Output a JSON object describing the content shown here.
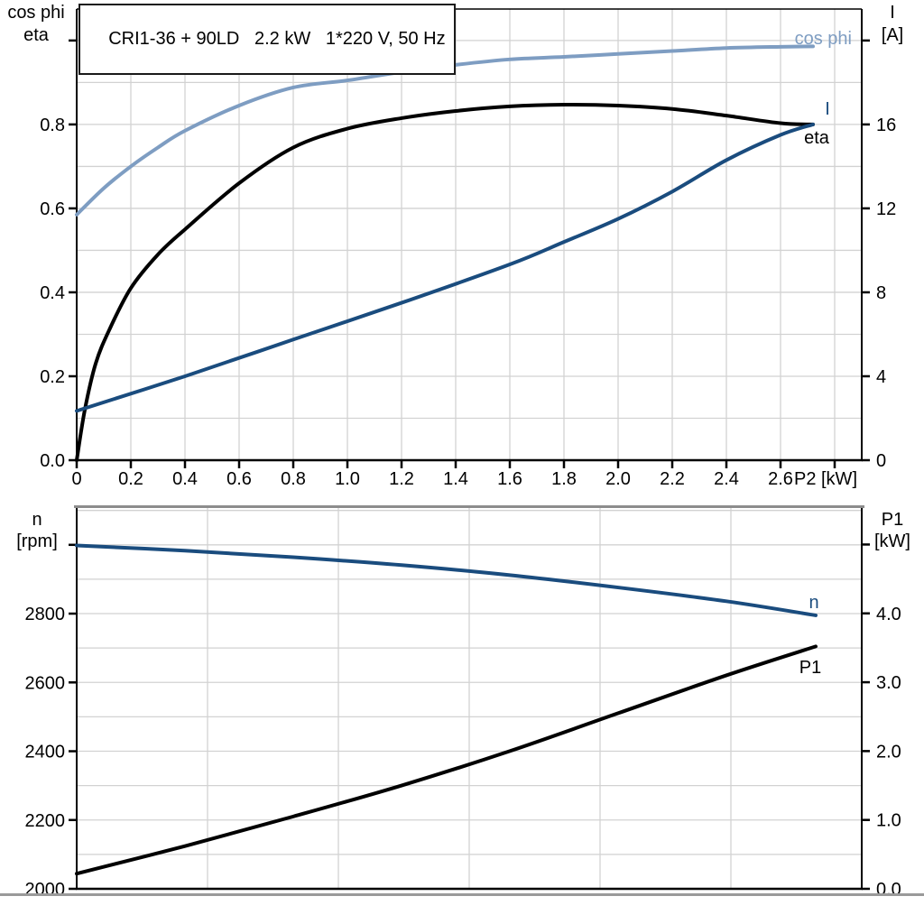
{
  "title_box": {
    "text": "CRI1-36 + 90LD   2.2 kW   1*220 V, 50 Hz"
  },
  "colors": {
    "light_blue": "#7E9DC2",
    "dark_blue": "#1A4C7E",
    "black": "#000000",
    "grid": "#D2D2D2",
    "frame_gray": "#8C8C8C"
  },
  "top_chart": {
    "left_axis_title": [
      "cos phi",
      "eta"
    ],
    "right_axis_title": [
      "I",
      "[A]"
    ],
    "x_axis_label": "P2 [kW]",
    "left_tick_labels": [
      "0.0",
      "0.2",
      "0.4",
      "0.6",
      "0.8"
    ],
    "right_tick_labels": [
      "0",
      "4",
      "8",
      "12",
      "16"
    ],
    "x_tick_labels": [
      "0",
      "0.2",
      "0.4",
      "0.6",
      "0.8",
      "1.0",
      "1.2",
      "1.4",
      "1.6",
      "1.8",
      "2.0",
      "2.2",
      "2.4",
      "2.6"
    ],
    "curve_labels": {
      "cos_phi": "cos phi",
      "I": "I",
      "eta": "eta"
    }
  },
  "bottom_chart": {
    "left_axis_title": [
      "n",
      "[rpm]"
    ],
    "right_axis_title": [
      "P1",
      "[kW]"
    ],
    "left_tick_labels": [
      "2000",
      "2200",
      "2400",
      "2600",
      "2800"
    ],
    "right_tick_labels": [
      "0.0",
      "1.0",
      "2.0",
      "3.0",
      "4.0"
    ],
    "curve_labels": {
      "n": "n",
      "P1": "P1"
    }
  },
  "chart_data": [
    {
      "type": "line",
      "title": "CRI1-36 + 90LD 2.2 kW 1*220 V, 50 Hz",
      "xlabel": "P2 [kW]",
      "x_range": [
        0,
        2.9
      ],
      "grid": true,
      "y_left": {
        "label": "cos phi / eta",
        "range": [
          0,
          1.075
        ],
        "ticks": [
          0,
          0.2,
          0.4,
          0.6,
          0.8
        ]
      },
      "y_right": {
        "label": "I [A]",
        "range": [
          0,
          21.5
        ],
        "ticks": [
          0,
          4,
          8,
          12,
          16
        ]
      },
      "series": [
        {
          "name": "cos phi",
          "axis": "left",
          "color_key": "light_blue",
          "x": [
            0,
            0.1,
            0.2,
            0.3,
            0.4,
            0.6,
            0.8,
            1.0,
            1.2,
            1.4,
            1.6,
            1.8,
            2.0,
            2.2,
            2.4,
            2.6,
            2.72
          ],
          "y": [
            0.585,
            0.648,
            0.7,
            0.745,
            0.785,
            0.845,
            0.888,
            0.905,
            0.925,
            0.942,
            0.955,
            0.961,
            0.968,
            0.975,
            0.982,
            0.985,
            0.986
          ]
        },
        {
          "name": "eta",
          "axis": "left",
          "color_key": "black",
          "x": [
            0,
            0.03,
            0.07,
            0.12,
            0.2,
            0.3,
            0.4,
            0.6,
            0.8,
            1.0,
            1.2,
            1.4,
            1.6,
            1.8,
            2.0,
            2.2,
            2.4,
            2.6,
            2.72
          ],
          "y": [
            0,
            0.12,
            0.23,
            0.31,
            0.41,
            0.49,
            0.55,
            0.66,
            0.745,
            0.79,
            0.815,
            0.832,
            0.843,
            0.847,
            0.845,
            0.837,
            0.821,
            0.803,
            0.8
          ]
        },
        {
          "name": "I",
          "axis": "right",
          "color_key": "dark_blue",
          "x": [
            0,
            0.4,
            0.8,
            1.2,
            1.6,
            1.8,
            2.0,
            2.2,
            2.4,
            2.6,
            2.72
          ],
          "y": [
            2.35,
            4.0,
            5.75,
            7.5,
            9.33,
            10.4,
            11.5,
            12.8,
            14.3,
            15.5,
            16.0
          ]
        }
      ]
    },
    {
      "type": "line",
      "title": "",
      "xlabel": "",
      "x_range": [
        0,
        2.9
      ],
      "grid": true,
      "y_left": {
        "label": "n [rpm]",
        "range": [
          2000,
          3107
        ],
        "ticks": [
          2000,
          2200,
          2400,
          2600,
          2800
        ]
      },
      "y_right": {
        "label": "P1 [kW]",
        "range": [
          0,
          5.53
        ],
        "ticks": [
          0,
          1,
          2,
          3,
          4
        ]
      },
      "series": [
        {
          "name": "n",
          "axis": "left",
          "color_key": "dark_blue",
          "x": [
            0,
            0.4,
            0.8,
            1.2,
            1.6,
            2.0,
            2.4,
            2.73
          ],
          "y": [
            2998,
            2983,
            2964,
            2941,
            2912,
            2876,
            2836,
            2795
          ]
        },
        {
          "name": "P1",
          "axis": "right",
          "color_key": "black",
          "x": [
            0,
            0.4,
            0.8,
            1.2,
            1.6,
            2.0,
            2.4,
            2.73
          ],
          "y": [
            0.22,
            0.62,
            1.05,
            1.5,
            2.0,
            2.55,
            3.1,
            3.52
          ]
        }
      ]
    }
  ]
}
